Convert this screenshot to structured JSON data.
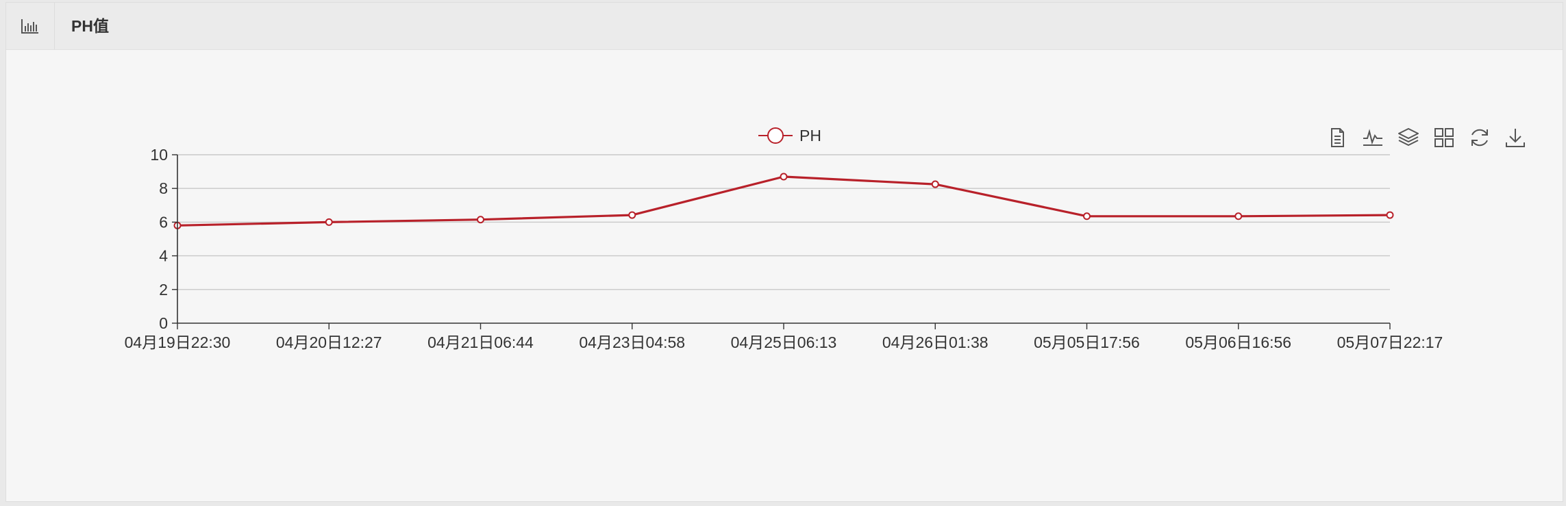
{
  "panel": {
    "title": "PH值"
  },
  "toolbox": {
    "icons": [
      "data-view-icon",
      "line-chart-icon",
      "stack-icon",
      "tiled-icon",
      "refresh-icon",
      "download-icon"
    ]
  },
  "colors": {
    "series": "#b8212a",
    "grid": "#c8c8c8",
    "axis": "#333333"
  },
  "chart_data": {
    "type": "line",
    "legend": [
      "PH"
    ],
    "legend_position": "top-center",
    "x": [
      "04月19日22:30",
      "04月20日12:27",
      "04月21日06:44",
      "04月23日04:58",
      "04月25日06:13",
      "04月26日01:38",
      "05月05日17:56",
      "05月06日16:56",
      "05月07日22:17"
    ],
    "ylim": [
      0,
      10
    ],
    "yticks": [
      "0",
      "2",
      "4",
      "6",
      "8",
      "10"
    ],
    "grid": true,
    "series": [
      {
        "name": "PH",
        "values": [
          5.8,
          6.0,
          6.15,
          6.42,
          8.7,
          8.25,
          6.35,
          6.35,
          6.42
        ]
      }
    ]
  }
}
